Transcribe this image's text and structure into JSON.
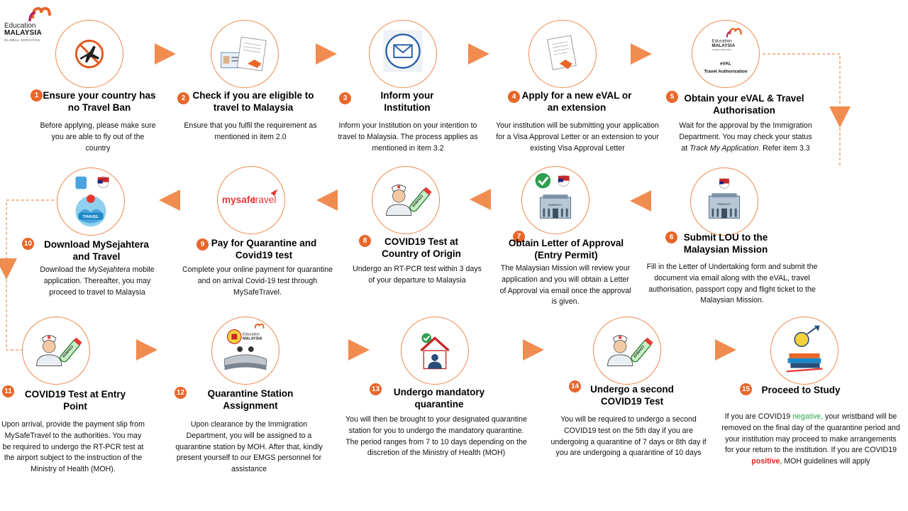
{
  "logo": {
    "line1": "Education",
    "line2": "MALAYSIA",
    "line3": "GLOBAL SERVICES"
  },
  "colors": {
    "accent": "#e8662a",
    "circle_border": "#ee8a4d",
    "negative": "#2ea44f",
    "positive": "#d9261c"
  },
  "steps": [
    {
      "num": "1",
      "title": "Ensure your country has no Travel Ban",
      "desc": "Before applying, please make sure you are able to fly out of the country",
      "icon": "no-flight-icon"
    },
    {
      "num": "2",
      "title": "Check if you are eligible to travel to Malaysia",
      "desc": "Ensure that you fulfil the requirement as mentioned in item 2.0",
      "icon": "eval-documents-icon"
    },
    {
      "num": "3",
      "title": "Inform your Institution",
      "desc": "Inform your Institution on your intention to travel to Malaysia. The process applies as mentioned in item 3.2",
      "icon": "envelope-icon"
    },
    {
      "num": "4",
      "title": "Apply for a new eVAL or an extension",
      "desc": "Your institution will be submitting your application for a Visa Approval Letter  or an extension to your existing Visa Approval Letter",
      "icon": "eval-document-icon"
    },
    {
      "num": "5",
      "title": "Obtain your eVAL & Travel Authorisation",
      "desc_pre": "Wait for the approval by the Immigration Department.  You may check your status at ",
      "desc_em": "Track My Application",
      "desc_post": ". Refer  item 3.3",
      "icon_line1": "eVAL",
      "icon_line2": "Travel  Authorisation",
      "logo_line1": "Education",
      "logo_line2": "MALAYSIA",
      "logo_line3": "GLOBAL SERVICES"
    },
    {
      "num": "6",
      "title": "Submit LOU to the Malaysian Mission",
      "desc": "Fill in the Letter  of Undertaking form and submit the document  via email along with the eVAL,  travel authorisation, passport copy and flight ticket to the Malaysian Mission.",
      "icon": "embassy-icon",
      "embassy_label": "EMBASSY"
    },
    {
      "num": "7",
      "title": "Obtain Letter of Approval (Entry Permit)",
      "desc": "The Malaysian Mission will review your application and you will obtain a Letter of Approval via email once the approval is given.",
      "icon": "embassy-approved-icon",
      "embassy_label": "EMBASSY"
    },
    {
      "num": "8",
      "title": "COVID19 Test at Country of Origin",
      "desc": "Undergo an RT-PCR test within 3 days of your departure to Malaysia",
      "icon": "nurse-test-icon",
      "tube_label": "COVID19"
    },
    {
      "num": "9",
      "title": "Pay for Quarantine and Covid19 test",
      "desc": "Complete  your online payment for quarantine and on arrival Covid-19 test through MySafeTravel.",
      "brand_a": "mysafe",
      "brand_b": "travel"
    },
    {
      "num": "10",
      "title": "Download MySejahtera and Travel",
      "desc_pre": "Download the ",
      "desc_em": "MySejahtera",
      "desc_post": " mobile application. Thereafter, you may proceed to travel to Malaysia",
      "icon": "travel-app-icon",
      "badge_label": "TRAVEL"
    },
    {
      "num": "11",
      "title": "COVID19 Test at Entry Point",
      "desc": "Upon arrival, provide the payment slip from MySafeTravel to the authorities. You may be required to undergo the RT-PCR test at the airport subject to the instruction of the Ministry of Health (MOH).",
      "icon": "nurse-test-icon",
      "tube_label": "COVID19"
    },
    {
      "num": "12",
      "title": "Quarantine Station Assignment",
      "desc": "Upon clearance by the  Immigration Department,  you will be assigned to a quarantine station by MOH.  After that,  kindly present yourself to our EMGS personnel for assistance",
      "icon": "reception-desk-icon",
      "logo_line1": "Education",
      "logo_line2": "MALAYSIA"
    },
    {
      "num": "13",
      "title": "Undergo mandatory quarantine",
      "desc": "You will then be brought to your designated quarantine station for you to undergo the mandatory quarantine. The period ranges from 7 to 10 days depending on the  discretion of the Ministry of Health (MOH)",
      "icon": "home-quarantine-icon"
    },
    {
      "num": "14",
      "title": "Undergo a second COVID19 Test",
      "desc": "You will be required to undergo a second COVID19 test on the  5th day if you are undergoing a quarantine of 7 days or 8th day if you are undergoing a quarantine of 10 days",
      "icon": "nurse-test-icon",
      "tube_label": "COVID19"
    },
    {
      "num": "15",
      "title": "Proceed to Study",
      "desc_a": "If you are COVID19 ",
      "desc_neg": "negative,",
      "desc_b": " your wristband will be removed  on the final day of the quarantine period and your institution may proceed to make arrangements for your return to the institution. If you are COVID19 ",
      "desc_pos": "positive",
      "desc_c": ", MOH guidelines will apply",
      "icon": "study-books-icon"
    }
  ]
}
